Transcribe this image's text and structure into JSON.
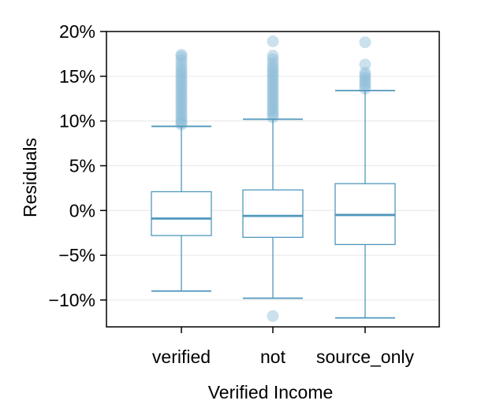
{
  "chart_data": {
    "type": "boxplot",
    "title": "",
    "xlabel": "Verified Income",
    "ylabel": "Residuals",
    "categories": [
      "verified",
      "not",
      "source_only"
    ],
    "ylim": [
      -13,
      20
    ],
    "yticks": [
      -10,
      -5,
      0,
      5,
      10,
      15,
      20
    ],
    "ytick_labels": [
      "−10%",
      "−5%",
      "0%",
      "5%",
      "10%",
      "15%",
      "20%"
    ],
    "grid": true,
    "legend": "none",
    "box_color": "#4f97bb",
    "outlier_color": "#8bbcd6",
    "boxes": [
      {
        "category": "verified",
        "whisker_low": -9.0,
        "q1": -2.8,
        "median": -0.9,
        "q3": 2.1,
        "whisker_high": 9.4,
        "outliers": [
          9.6,
          9.8,
          10.0,
          10.3,
          10.6,
          10.9,
          11.2,
          11.5,
          11.8,
          12.1,
          12.4,
          12.7,
          13.0,
          13.3,
          13.6,
          13.9,
          14.2,
          14.5,
          14.8,
          15.1,
          15.4,
          15.7,
          16.0,
          16.4,
          16.8,
          17.2,
          17.4
        ]
      },
      {
        "category": "not",
        "whisker_low": -9.8,
        "q1": -3.0,
        "median": -0.6,
        "q3": 2.3,
        "whisker_high": 10.2,
        "outliers": [
          -11.8,
          10.4,
          10.7,
          11.0,
          11.3,
          11.6,
          11.9,
          12.2,
          12.5,
          12.8,
          13.1,
          13.4,
          13.7,
          14.0,
          14.3,
          14.6,
          14.9,
          15.2,
          15.5,
          15.8,
          16.1,
          16.5,
          16.9,
          17.3,
          18.9
        ]
      },
      {
        "category": "source_only",
        "whisker_low": -12.0,
        "q1": -3.8,
        "median": -0.5,
        "q3": 3.0,
        "whisker_high": 13.4,
        "outliers": [
          13.6,
          13.9,
          14.2,
          14.5,
          14.8,
          15.1,
          15.4,
          16.3,
          18.8
        ]
      }
    ]
  }
}
